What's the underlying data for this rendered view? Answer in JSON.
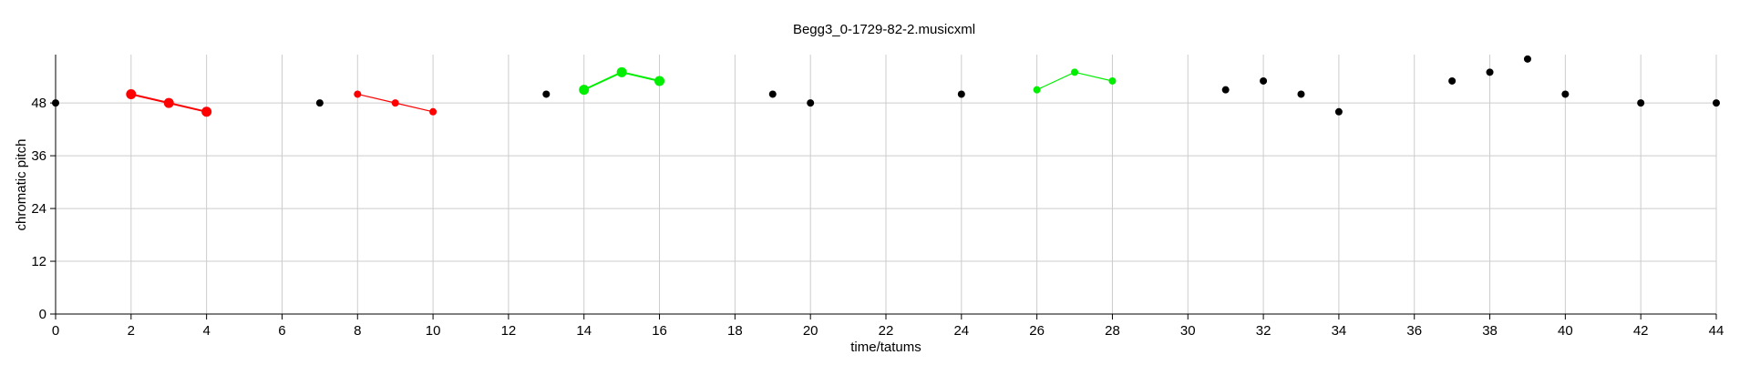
{
  "chart_data": {
    "type": "scatter",
    "title": "Begg3_0-1729-82-2.musicxml",
    "xlabel": "time/tatums",
    "ylabel": "chromatic pitch",
    "xlim": [
      0,
      44
    ],
    "ylim": [
      0,
      59
    ],
    "xticks": [
      0,
      2,
      4,
      6,
      8,
      10,
      12,
      14,
      16,
      18,
      20,
      22,
      24,
      26,
      28,
      30,
      32,
      34,
      36,
      38,
      40,
      42,
      44
    ],
    "yticks": [
      0,
      12,
      24,
      36,
      48
    ],
    "grid": true,
    "colors": {
      "default": "#000000",
      "red": "#ff0000",
      "green": "#00ee00"
    },
    "points": [
      {
        "x": 0,
        "y": 48,
        "color": "default"
      },
      {
        "x": 2,
        "y": 50,
        "color": "red",
        "size": "large"
      },
      {
        "x": 3,
        "y": 48,
        "color": "red",
        "size": "large"
      },
      {
        "x": 4,
        "y": 46,
        "color": "red",
        "size": "large"
      },
      {
        "x": 7,
        "y": 48,
        "color": "default"
      },
      {
        "x": 8,
        "y": 50,
        "color": "red"
      },
      {
        "x": 9,
        "y": 48,
        "color": "red"
      },
      {
        "x": 10,
        "y": 46,
        "color": "red"
      },
      {
        "x": 13,
        "y": 50,
        "color": "default"
      },
      {
        "x": 14,
        "y": 51,
        "color": "green",
        "size": "large"
      },
      {
        "x": 15,
        "y": 55,
        "color": "green",
        "size": "large"
      },
      {
        "x": 16,
        "y": 53,
        "color": "green",
        "size": "large"
      },
      {
        "x": 19,
        "y": 50,
        "color": "default"
      },
      {
        "x": 20,
        "y": 48,
        "color": "default"
      },
      {
        "x": 24,
        "y": 50,
        "color": "default"
      },
      {
        "x": 26,
        "y": 51,
        "color": "green"
      },
      {
        "x": 27,
        "y": 55,
        "color": "green"
      },
      {
        "x": 28,
        "y": 53,
        "color": "green"
      },
      {
        "x": 31,
        "y": 51,
        "color": "default"
      },
      {
        "x": 32,
        "y": 53,
        "color": "default"
      },
      {
        "x": 33,
        "y": 50,
        "color": "default"
      },
      {
        "x": 34,
        "y": 46,
        "color": "default"
      },
      {
        "x": 37,
        "y": 53,
        "color": "default"
      },
      {
        "x": 38,
        "y": 55,
        "color": "default"
      },
      {
        "x": 39,
        "y": 58,
        "color": "default"
      },
      {
        "x": 40,
        "y": 50,
        "color": "default"
      },
      {
        "x": 42,
        "y": 48,
        "color": "default"
      },
      {
        "x": 44,
        "y": 48,
        "color": "default"
      }
    ],
    "segments": [
      {
        "color": "red",
        "size": "large",
        "points": [
          [
            2,
            50
          ],
          [
            3,
            48
          ],
          [
            4,
            46
          ]
        ]
      },
      {
        "color": "red",
        "points": [
          [
            8,
            50
          ],
          [
            9,
            48
          ],
          [
            10,
            46
          ]
        ]
      },
      {
        "color": "green",
        "size": "large",
        "points": [
          [
            14,
            51
          ],
          [
            15,
            55
          ],
          [
            16,
            53
          ]
        ]
      },
      {
        "color": "green",
        "points": [
          [
            26,
            51
          ],
          [
            27,
            55
          ],
          [
            28,
            53
          ]
        ]
      }
    ]
  }
}
